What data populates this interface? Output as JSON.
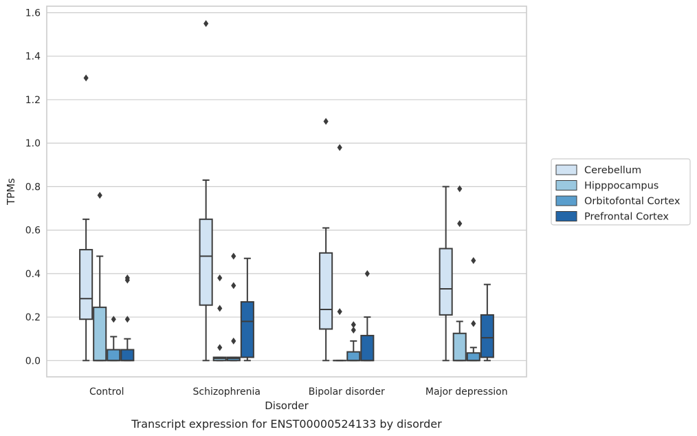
{
  "chart_data": {
    "type": "box",
    "xlabel": "Disorder",
    "ylabel": "TPMs",
    "caption": "Transcript expression for ENST00000524133 by disorder",
    "ylim": [
      -0.075,
      1.63
    ],
    "yticks": [
      "0.0",
      "0.2",
      "0.4",
      "0.6",
      "0.8",
      "1.0",
      "1.2",
      "1.4",
      "1.6"
    ],
    "grid": "horizontal",
    "legend_position": "right-outside",
    "categories": [
      "Control",
      "Schizophrenia",
      "Bipolar disorder",
      "Major depression"
    ],
    "series": [
      {
        "name": "Cerebellum",
        "color": "#d1e3f3",
        "boxes": [
          {
            "whislo": 0.0,
            "q1": 0.19,
            "med": 0.285,
            "q3": 0.51,
            "whishi": 0.65,
            "fliers": [
              1.3
            ]
          },
          {
            "whislo": 0.0,
            "q1": 0.255,
            "med": 0.48,
            "q3": 0.65,
            "whishi": 0.83,
            "fliers": [
              1.55
            ]
          },
          {
            "whislo": 0.0,
            "q1": 0.145,
            "med": 0.235,
            "q3": 0.495,
            "whishi": 0.61,
            "fliers": [
              1.1
            ]
          },
          {
            "whislo": 0.0,
            "q1": 0.21,
            "med": 0.33,
            "q3": 0.515,
            "whishi": 0.8,
            "fliers": []
          }
        ]
      },
      {
        "name": "Hipppocampus",
        "color": "#9ac8e0",
        "boxes": [
          {
            "whislo": 0.0,
            "q1": 0.0,
            "med": 0.0,
            "q3": 0.245,
            "whishi": 0.48,
            "fliers": [
              0.76
            ]
          },
          {
            "whislo": 0.0,
            "q1": 0.0,
            "med": 0.01,
            "q3": 0.015,
            "whishi": 0.015,
            "fliers": [
              0.38,
              0.24,
              0.06
            ]
          },
          {
            "whislo": 0.0,
            "q1": 0.0,
            "med": 0.0,
            "q3": 0.0,
            "whishi": 0.0,
            "fliers": [
              0.98,
              0.225
            ]
          },
          {
            "whislo": 0.0,
            "q1": 0.0,
            "med": 0.0,
            "q3": 0.125,
            "whishi": 0.18,
            "fliers": [
              0.79,
              0.63
            ]
          }
        ]
      },
      {
        "name": "Orbitofontal Cortex",
        "color": "#5a9ecd",
        "boxes": [
          {
            "whislo": 0.0,
            "q1": 0.0,
            "med": 0.0,
            "q3": 0.05,
            "whishi": 0.11,
            "fliers": [
              0.19
            ]
          },
          {
            "whislo": 0.0,
            "q1": 0.0,
            "med": 0.01,
            "q3": 0.015,
            "whishi": 0.015,
            "fliers": [
              0.48,
              0.345,
              0.09
            ]
          },
          {
            "whislo": 0.0,
            "q1": 0.0,
            "med": 0.0,
            "q3": 0.04,
            "whishi": 0.09,
            "fliers": [
              0.165,
              0.14
            ]
          },
          {
            "whislo": 0.0,
            "q1": 0.0,
            "med": 0.0,
            "q3": 0.035,
            "whishi": 0.06,
            "fliers": [
              0.46,
              0.17
            ]
          }
        ]
      },
      {
        "name": "Prefrontal Cortex",
        "color": "#2366a8",
        "boxes": [
          {
            "whislo": 0.0,
            "q1": 0.0,
            "med": 0.0,
            "q3": 0.05,
            "whishi": 0.1,
            "fliers": [
              0.38,
              0.37,
              0.19
            ]
          },
          {
            "whislo": 0.0,
            "q1": 0.015,
            "med": 0.18,
            "q3": 0.27,
            "whishi": 0.47,
            "fliers": []
          },
          {
            "whislo": 0.0,
            "q1": 0.0,
            "med": 0.0,
            "q3": 0.115,
            "whishi": 0.2,
            "fliers": [
              0.4
            ]
          },
          {
            "whislo": 0.0,
            "q1": 0.015,
            "med": 0.105,
            "q3": 0.21,
            "whishi": 0.35,
            "fliers": []
          }
        ]
      }
    ]
  }
}
